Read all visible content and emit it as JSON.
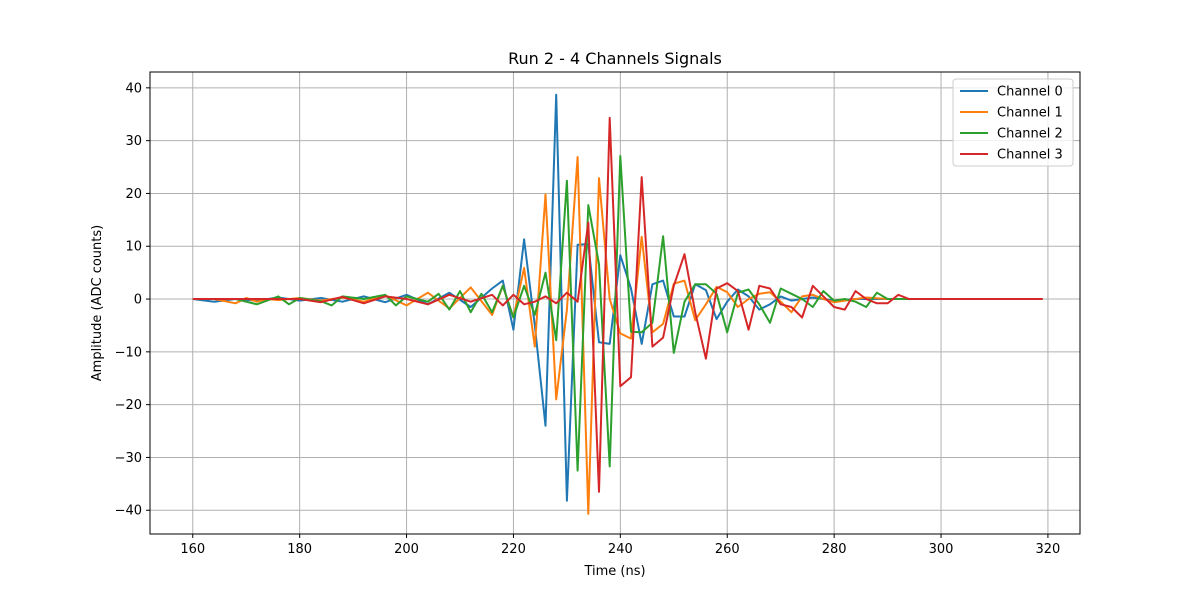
{
  "chart_data": {
    "type": "line",
    "title": "Run 2 - 4 Channels Signals",
    "xlabel": "Time (ns)",
    "ylabel": "Amplitude (ADC counts)",
    "xlim": [
      152,
      326
    ],
    "ylim": [
      -44.5,
      43
    ],
    "xticks": [
      160,
      180,
      200,
      220,
      240,
      260,
      280,
      300,
      320
    ],
    "yticks": [
      -40,
      -30,
      -20,
      -10,
      0,
      10,
      20,
      30,
      40
    ],
    "xtick_labels": [
      "160",
      "180",
      "200",
      "220",
      "240",
      "260",
      "280",
      "300",
      "320"
    ],
    "ytick_labels": [
      "−40",
      "−30",
      "−20",
      "−10",
      "0",
      "10",
      "20",
      "30",
      "40"
    ],
    "grid": true,
    "legend_position": "top-right",
    "series": [
      {
        "name": "Channel 0",
        "color": "#1f77b4",
        "points": [
          [
            160,
            0
          ],
          [
            164,
            -0.5
          ],
          [
            168,
            0
          ],
          [
            172,
            -0.3
          ],
          [
            176,
            0.3
          ],
          [
            180,
            -0.3
          ],
          [
            184,
            0.2
          ],
          [
            188,
            -0.5
          ],
          [
            192,
            0.5
          ],
          [
            196,
            -0.6
          ],
          [
            200,
            0.8
          ],
          [
            204,
            -1
          ],
          [
            208,
            1.2
          ],
          [
            212,
            -1.5
          ],
          [
            216,
            2
          ],
          [
            218,
            3.5
          ],
          [
            220,
            -5.8
          ],
          [
            222,
            11.3
          ],
          [
            224,
            -5
          ],
          [
            226,
            -24
          ],
          [
            228,
            38.7
          ],
          [
            230,
            -38.2
          ],
          [
            232,
            10.3
          ],
          [
            234,
            10.4
          ],
          [
            236,
            -8.2
          ],
          [
            238,
            -8.5
          ],
          [
            240,
            8.3
          ],
          [
            242,
            2
          ],
          [
            244,
            -8.5
          ],
          [
            246,
            2.8
          ],
          [
            248,
            3.5
          ],
          [
            250,
            -3.3
          ],
          [
            252,
            -3.3
          ],
          [
            254,
            2.8
          ],
          [
            256,
            1.7
          ],
          [
            258,
            -3.8
          ],
          [
            260,
            -0.5
          ],
          [
            262,
            1.8
          ],
          [
            264,
            0.5
          ],
          [
            266,
            -2
          ],
          [
            268,
            -1
          ],
          [
            270,
            0.5
          ],
          [
            272,
            -0.3
          ],
          [
            276,
            0.3
          ],
          [
            280,
            -0.3
          ],
          [
            284,
            0
          ],
          [
            290,
            0
          ],
          [
            300,
            0
          ],
          [
            319,
            0
          ]
        ]
      },
      {
        "name": "Channel 1",
        "color": "#ff7f0e",
        "points": [
          [
            160,
            0
          ],
          [
            164,
            0
          ],
          [
            168,
            -0.8
          ],
          [
            170,
            0.2
          ],
          [
            172,
            -0.5
          ],
          [
            174,
            0
          ],
          [
            176,
            -0.2
          ],
          [
            180,
            0.2
          ],
          [
            184,
            -0.3
          ],
          [
            188,
            0.3
          ],
          [
            192,
            -0.5
          ],
          [
            196,
            0.7
          ],
          [
            200,
            -1.2
          ],
          [
            204,
            1.2
          ],
          [
            208,
            -1.8
          ],
          [
            212,
            2.2
          ],
          [
            216,
            -3
          ],
          [
            218,
            2.5
          ],
          [
            220,
            -3.5
          ],
          [
            222,
            5.9
          ],
          [
            224,
            -9
          ],
          [
            226,
            19.8
          ],
          [
            228,
            -19
          ],
          [
            230,
            -2
          ],
          [
            232,
            26.9
          ],
          [
            234,
            -40.7
          ],
          [
            236,
            22.9
          ],
          [
            238,
            0
          ],
          [
            240,
            -6.5
          ],
          [
            242,
            -7.5
          ],
          [
            244,
            11.8
          ],
          [
            246,
            -6.3
          ],
          [
            248,
            -4.7
          ],
          [
            250,
            2.9
          ],
          [
            252,
            3.5
          ],
          [
            254,
            -4
          ],
          [
            256,
            -1
          ],
          [
            258,
            2.3
          ],
          [
            260,
            1.3
          ],
          [
            262,
            -1.5
          ],
          [
            264,
            0
          ],
          [
            266,
            1
          ],
          [
            268,
            1.3
          ],
          [
            270,
            -0.5
          ],
          [
            272,
            -2.5
          ],
          [
            274,
            0.5
          ],
          [
            276,
            0.8
          ],
          [
            278,
            0
          ],
          [
            280,
            -0.6
          ],
          [
            282,
            -0.3
          ],
          [
            286,
            0.3
          ],
          [
            290,
            0
          ],
          [
            300,
            0
          ],
          [
            319,
            0
          ]
        ]
      },
      {
        "name": "Channel 2",
        "color": "#2ca02c",
        "points": [
          [
            160,
            0
          ],
          [
            164,
            0
          ],
          [
            168,
            0
          ],
          [
            172,
            -1
          ],
          [
            176,
            0.5
          ],
          [
            178,
            -1
          ],
          [
            180,
            0.2
          ],
          [
            184,
            -0.4
          ],
          [
            186,
            -1.2
          ],
          [
            188,
            0.5
          ],
          [
            192,
            0
          ],
          [
            196,
            0.8
          ],
          [
            198,
            -1.2
          ],
          [
            200,
            0.5
          ],
          [
            204,
            -0.5
          ],
          [
            206,
            1
          ],
          [
            208,
            -2
          ],
          [
            210,
            1.5
          ],
          [
            212,
            -2.5
          ],
          [
            214,
            1
          ],
          [
            216,
            -2.5
          ],
          [
            218,
            2.5
          ],
          [
            220,
            -3.5
          ],
          [
            222,
            2.5
          ],
          [
            224,
            -3
          ],
          [
            226,
            5
          ],
          [
            228,
            -7.8
          ],
          [
            230,
            22.4
          ],
          [
            232,
            -32.5
          ],
          [
            234,
            17.8
          ],
          [
            236,
            6.6
          ],
          [
            238,
            -31.7
          ],
          [
            240,
            27.1
          ],
          [
            242,
            -6.2
          ],
          [
            244,
            -6.3
          ],
          [
            246,
            -4.5
          ],
          [
            248,
            11.9
          ],
          [
            250,
            -10.2
          ],
          [
            252,
            -0.5
          ],
          [
            254,
            2.8
          ],
          [
            256,
            2.8
          ],
          [
            258,
            1
          ],
          [
            260,
            -6.3
          ],
          [
            262,
            1.2
          ],
          [
            264,
            1.8
          ],
          [
            266,
            -1
          ],
          [
            268,
            -4.5
          ],
          [
            270,
            2
          ],
          [
            272,
            1
          ],
          [
            274,
            0
          ],
          [
            276,
            -1.5
          ],
          [
            278,
            1.5
          ],
          [
            280,
            -0.3
          ],
          [
            282,
            0
          ],
          [
            284,
            -0.5
          ],
          [
            286,
            -1.5
          ],
          [
            288,
            1.2
          ],
          [
            290,
            0
          ],
          [
            300,
            0
          ],
          [
            319,
            0
          ]
        ]
      },
      {
        "name": "Channel 3",
        "color": "#d62728",
        "points": [
          [
            160,
            0
          ],
          [
            164,
            0
          ],
          [
            168,
            0
          ],
          [
            172,
            0
          ],
          [
            176,
            0
          ],
          [
            180,
            0
          ],
          [
            184,
            -0.6
          ],
          [
            188,
            0.4
          ],
          [
            192,
            -0.8
          ],
          [
            196,
            0.5
          ],
          [
            200,
            0
          ],
          [
            204,
            -1
          ],
          [
            208,
            0.8
          ],
          [
            212,
            -0.5
          ],
          [
            216,
            0.8
          ],
          [
            218,
            -1.2
          ],
          [
            220,
            0.8
          ],
          [
            222,
            -1
          ],
          [
            224,
            -0.5
          ],
          [
            226,
            0.5
          ],
          [
            228,
            -0.8
          ],
          [
            230,
            1.2
          ],
          [
            232,
            -0.5
          ],
          [
            234,
            14.5
          ],
          [
            236,
            -36.5
          ],
          [
            238,
            34.3
          ],
          [
            240,
            -16.5
          ],
          [
            242,
            -14.8
          ],
          [
            244,
            23.1
          ],
          [
            246,
            -9
          ],
          [
            248,
            -7.3
          ],
          [
            250,
            2.5
          ],
          [
            252,
            8.5
          ],
          [
            254,
            -2.5
          ],
          [
            256,
            -11.3
          ],
          [
            258,
            2
          ],
          [
            260,
            3
          ],
          [
            262,
            1.5
          ],
          [
            264,
            -5.8
          ],
          [
            266,
            2.5
          ],
          [
            268,
            2
          ],
          [
            270,
            -1
          ],
          [
            272,
            -1.5
          ],
          [
            274,
            -3.5
          ],
          [
            276,
            2.5
          ],
          [
            278,
            0.5
          ],
          [
            280,
            -1.5
          ],
          [
            282,
            -2
          ],
          [
            284,
            1.5
          ],
          [
            286,
            0
          ],
          [
            288,
            -0.8
          ],
          [
            290,
            -0.8
          ],
          [
            292,
            0.8
          ],
          [
            294,
            0
          ],
          [
            300,
            0
          ],
          [
            319,
            0
          ]
        ]
      }
    ]
  }
}
